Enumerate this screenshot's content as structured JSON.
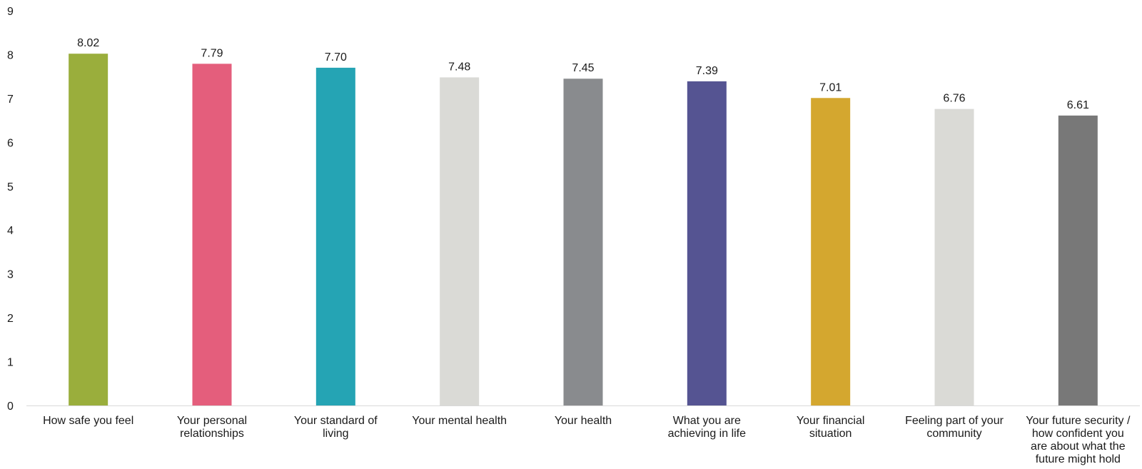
{
  "chart_data": {
    "type": "bar",
    "title": "",
    "xlabel": "",
    "ylabel": "",
    "ylim": [
      0,
      9
    ],
    "yticks": [
      0,
      1,
      2,
      3,
      4,
      5,
      6,
      7,
      8,
      9
    ],
    "grid": false,
    "legend": "none",
    "categories": [
      [
        "How safe you feel"
      ],
      [
        "Your personal",
        "relationships"
      ],
      [
        "Your standard of",
        "living"
      ],
      [
        "Your mental health"
      ],
      [
        "Your health"
      ],
      [
        "What you are",
        "achieving in life"
      ],
      [
        "Your financial",
        "situation"
      ],
      [
        "Feeling part of your",
        "community"
      ],
      [
        "Your future security /",
        "how confident you",
        "are about what the",
        "future might hold"
      ]
    ],
    "values": [
      8.02,
      7.79,
      7.7,
      7.48,
      7.45,
      7.39,
      7.01,
      6.76,
      6.61
    ],
    "value_labels": [
      "8.02",
      "7.79",
      "7.70",
      "7.48",
      "7.45",
      "7.39",
      "7.01",
      "6.76",
      "6.61"
    ],
    "colors": [
      "#9aae3c",
      "#e45e7c",
      "#25a4b4",
      "#dadad6",
      "#898b8e",
      "#555492",
      "#d4a72f",
      "#dadad6",
      "#787878"
    ]
  }
}
